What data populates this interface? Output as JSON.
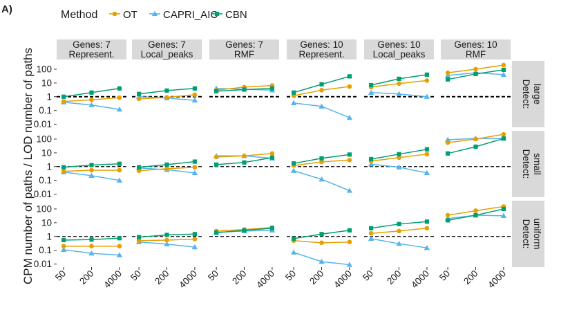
{
  "panel_tag": "A)",
  "legend": {
    "title": "Method",
    "entries": [
      {
        "name": "OT",
        "color": "#E69F00",
        "marker": "circle"
      },
      {
        "name": "CAPRI_AIC",
        "color": "#56B4E9",
        "marker": "triangle"
      },
      {
        "name": "CBN",
        "color": "#009E73",
        "marker": "square"
      }
    ]
  },
  "y_axis_title": "CPM number of paths / LOD number of paths",
  "columns": [
    [
      "Genes: 7",
      "Represent."
    ],
    [
      "Genes: 7",
      "Local_peaks"
    ],
    [
      "Genes: 7",
      "RMF"
    ],
    [
      "Genes: 10",
      "Represent."
    ],
    [
      "Genes: 10",
      "Local_peaks"
    ],
    [
      "Genes: 10",
      "RMF"
    ]
  ],
  "rows": [
    [
      "Detect:",
      "large"
    ],
    [
      "Detect:",
      "small"
    ],
    [
      "Detect:",
      "uniform"
    ]
  ],
  "y_ticks": [
    "100",
    "10",
    "1",
    "0.1",
    "0.01"
  ],
  "x_ticks": [
    "50",
    "200",
    "4000"
  ],
  "chart_data": {
    "type": "line",
    "facet_grid": "rows: detection regime; columns: genes and fitness landscape",
    "x": [
      50,
      200,
      4000
    ],
    "x_scale": "categorical",
    "y_scale": "log10",
    "ylim": [
      0.006,
      400
    ],
    "reference_line": 1,
    "series_names": [
      "OT",
      "CAPRI_AIC",
      "CBN"
    ],
    "panels": [
      [
        {
          "OT": [
            0.45,
            0.6,
            0.85
          ],
          "CAPRI_AIC": [
            0.4,
            0.25,
            0.12
          ],
          "CBN": [
            1.0,
            2.0,
            4.0
          ]
        },
        {
          "OT": [
            0.7,
            0.9,
            1.4
          ],
          "CAPRI_AIC": [
            1.0,
            0.8,
            0.55
          ],
          "CBN": [
            1.6,
            2.8,
            4.0
          ]
        },
        {
          "OT": [
            3.0,
            5.0,
            6.5
          ],
          "CAPRI_AIC": [
            4.0,
            3.5,
            3.0
          ],
          "CBN": [
            2.5,
            3.3,
            4.0
          ]
        },
        {
          "OT": [
            1.2,
            3.0,
            5.5
          ],
          "CAPRI_AIC": [
            0.35,
            0.2,
            0.03
          ],
          "CBN": [
            2.0,
            8.0,
            30.0
          ]
        },
        {
          "OT": [
            5.0,
            9.0,
            15.0
          ],
          "CAPRI_AIC": [
            2.0,
            1.6,
            1.0
          ],
          "CBN": [
            7.0,
            20.0,
            40.0
          ]
        },
        {
          "OT": [
            55.0,
            100.0,
            200.0
          ],
          "CAPRI_AIC": [
            35.0,
            55.0,
            40.0
          ],
          "CBN": [
            18.0,
            45.0,
            90.0
          ]
        }
      ],
      [
        {
          "OT": [
            0.45,
            0.55,
            0.55
          ],
          "CAPRI_AIC": [
            0.4,
            0.22,
            0.1
          ],
          "CBN": [
            0.9,
            1.3,
            1.6
          ]
        },
        {
          "OT": [
            0.5,
            0.7,
            0.9
          ],
          "CAPRI_AIC": [
            0.8,
            0.6,
            0.35
          ],
          "CBN": [
            0.9,
            1.4,
            2.3
          ]
        },
        {
          "OT": [
            5.0,
            6.0,
            9.0
          ],
          "CAPRI_AIC": [
            6.0,
            6.0,
            4.0
          ],
          "CBN": [
            1.4,
            2.0,
            4.5
          ]
        },
        {
          "OT": [
            1.2,
            2.2,
            3.0
          ],
          "CAPRI_AIC": [
            0.5,
            0.12,
            0.018
          ],
          "CBN": [
            1.7,
            4.0,
            7.5
          ]
        },
        {
          "OT": [
            2.5,
            4.5,
            8.0
          ],
          "CAPRI_AIC": [
            1.5,
            0.9,
            0.35
          ],
          "CBN": [
            3.5,
            8.0,
            18.0
          ]
        },
        {
          "OT": [
            55.0,
            100.0,
            220.0
          ],
          "CAPRI_AIC": [
            90.0,
            110.0,
            110.0
          ],
          "CBN": [
            9.0,
            28.0,
            110.0
          ]
        }
      ],
      [
        {
          "OT": [
            0.2,
            0.2,
            0.2
          ],
          "CAPRI_AIC": [
            0.11,
            0.06,
            0.045
          ],
          "CBN": [
            0.55,
            0.6,
            0.75
          ]
        },
        {
          "OT": [
            0.5,
            0.55,
            0.65
          ],
          "CAPRI_AIC": [
            0.4,
            0.28,
            0.17
          ],
          "CBN": [
            0.9,
            1.3,
            1.5
          ]
        },
        {
          "OT": [
            2.5,
            3.2,
            4.5
          ],
          "CAPRI_AIC": [
            2.0,
            2.5,
            2.8
          ],
          "CBN": [
            1.9,
            2.8,
            4.0
          ]
        },
        {
          "OT": [
            0.5,
            0.35,
            0.4
          ],
          "CAPRI_AIC": [
            0.07,
            0.015,
            0.009
          ],
          "CBN": [
            0.7,
            1.5,
            2.8
          ]
        },
        {
          "OT": [
            1.7,
            2.5,
            4.0
          ],
          "CAPRI_AIC": [
            0.7,
            0.3,
            0.15
          ],
          "CBN": [
            4.0,
            8.0,
            12.0
          ]
        },
        {
          "OT": [
            35.0,
            75.0,
            150.0
          ],
          "CAPRI_AIC": [
            20.0,
            35.0,
            32.0
          ],
          "CBN": [
            15.0,
            35.0,
            100.0
          ]
        }
      ]
    ]
  }
}
